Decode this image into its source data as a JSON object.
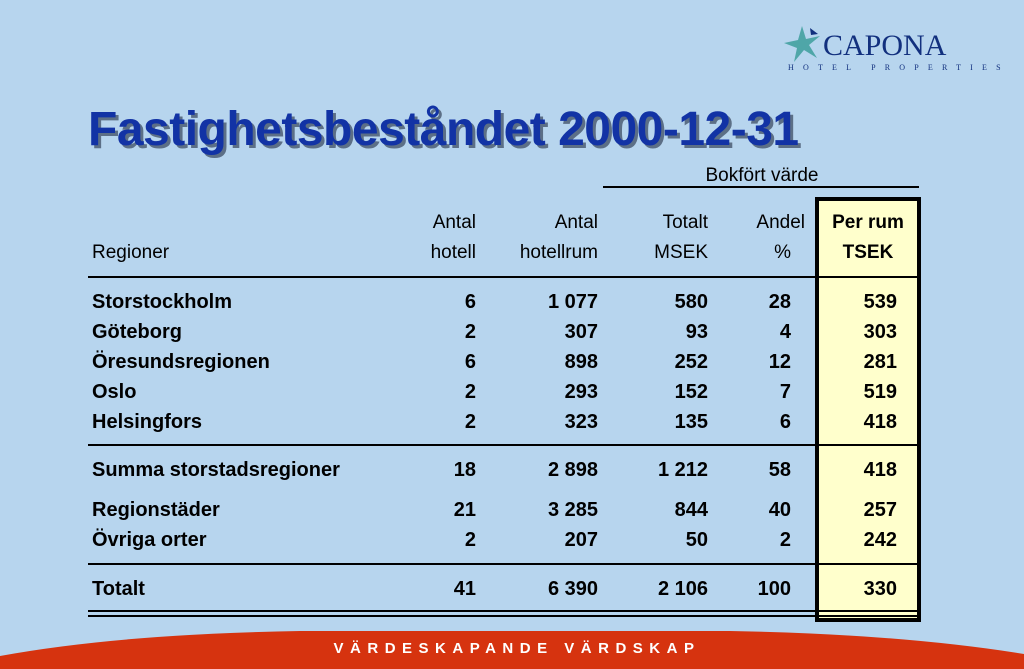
{
  "logo": {
    "name": "CAPONA",
    "tagline": "HOTEL PROPERTIES"
  },
  "title": "Fastighetsbeståndet 2000-12-31",
  "group_header": "Bokfört värde",
  "columns": {
    "region": "Regioner",
    "hotels": [
      "Antal",
      "hotell"
    ],
    "rooms": [
      "Antal",
      "hotellrum"
    ],
    "total": [
      "Totalt",
      "MSEK"
    ],
    "share": [
      "Andel",
      "%"
    ],
    "per_room": [
      "Per rum",
      "TSEK"
    ]
  },
  "rows": [
    {
      "region": "Storstockholm",
      "hotels": "6",
      "rooms": "1 077",
      "total": "580",
      "share": "28",
      "per_room": "539"
    },
    {
      "region": "Göteborg",
      "hotels": "2",
      "rooms": "307",
      "total": "93",
      "share": "4",
      "per_room": "303"
    },
    {
      "region": "Öresundsregionen",
      "hotels": "6",
      "rooms": "898",
      "total": "252",
      "share": "12",
      "per_room": "281"
    },
    {
      "region": "Oslo",
      "hotels": "2",
      "rooms": "293",
      "total": "152",
      "share": "7",
      "per_room": "519"
    },
    {
      "region": "Helsingfors",
      "hotels": "2",
      "rooms": "323",
      "total": "135",
      "share": "6",
      "per_room": "418"
    },
    {
      "region": "Summa storstadsregioner",
      "hotels": "18",
      "rooms": "2 898",
      "total": "1 212",
      "share": "58",
      "per_room": "418"
    },
    {
      "region": "Regionstäder",
      "hotels": "21",
      "rooms": "3 285",
      "total": "844",
      "share": "40",
      "per_room": "257"
    },
    {
      "region": "Övriga orter",
      "hotels": "2",
      "rooms": "207",
      "total": "50",
      "share": "2",
      "per_room": "242"
    },
    {
      "region": "Totalt",
      "hotels": "41",
      "rooms": "6 390",
      "total": "2 106",
      "share": "100",
      "per_room": "330"
    }
  ],
  "footer": "VÄRDESKAPANDE VÄRDSKAP",
  "colors": {
    "background": "#b7d5ee",
    "title": "#1233a5",
    "highlight": "#ffffcc",
    "footer": "#d6330f",
    "logo": "#12307e",
    "logo_star": "#4fa6a8"
  }
}
